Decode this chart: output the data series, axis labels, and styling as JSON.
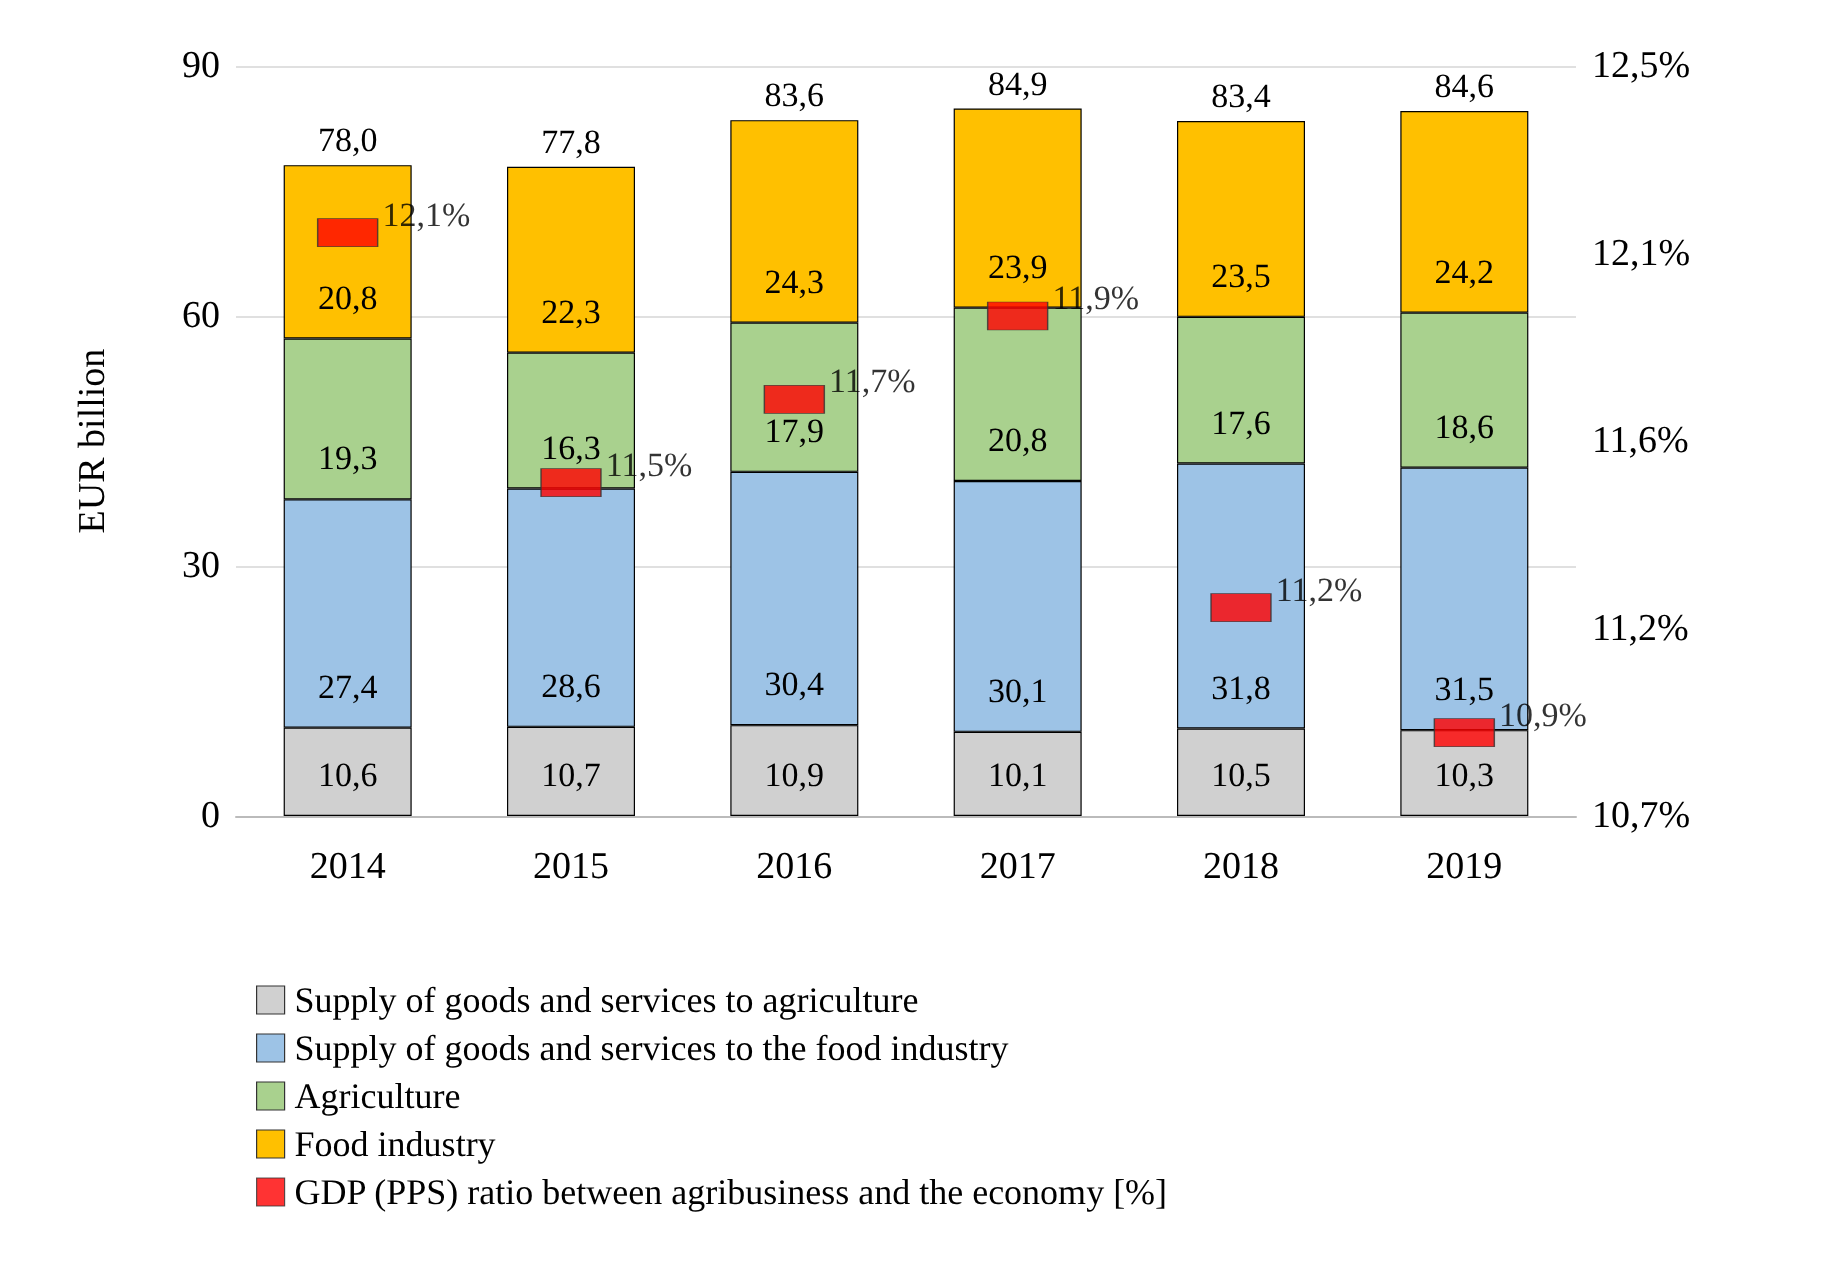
{
  "chart_data": {
    "type": "bar",
    "stacked": true,
    "ylabel": "EUR billion",
    "categories": [
      "2014",
      "2015",
      "2016",
      "2017",
      "2018",
      "2019"
    ],
    "ylim": [
      0,
      90
    ],
    "yticks": [
      0,
      30,
      60,
      90
    ],
    "y2lim": [
      10.7,
      12.5
    ],
    "y2ticks": [
      {
        "value": 10.7,
        "label": "10,7%"
      },
      {
        "value": 11.15,
        "label": "11,2%"
      },
      {
        "value": 11.6,
        "label": "11,6%"
      },
      {
        "value": 12.05,
        "label": "12,1%"
      },
      {
        "value": 12.5,
        "label": "12,5%"
      }
    ],
    "grid": "y",
    "legend": "bottom",
    "marker": "square",
    "totals": [
      "78,0",
      "77,8",
      "83,6",
      "84,9",
      "83,4",
      "84,6"
    ],
    "series": [
      {
        "name": "Supply of goods and services to agriculture",
        "color": "#d0d0d0",
        "values": [
          10.6,
          10.7,
          10.9,
          10.1,
          10.5,
          10.3
        ],
        "value_labels": [
          "10,6",
          "10,7",
          "10,9",
          "10,1",
          "10,5",
          "10,3"
        ]
      },
      {
        "name": "Supply of goods and services to the food industry",
        "color": "#9dc3e6",
        "values": [
          27.4,
          28.6,
          30.4,
          30.1,
          31.8,
          31.5
        ],
        "value_labels": [
          "27,4",
          "28,6",
          "30,4",
          "30,1",
          "31,8",
          "31,5"
        ]
      },
      {
        "name": "Agriculture",
        "color": "#a9d18e",
        "values": [
          19.3,
          16.3,
          17.9,
          20.8,
          17.6,
          18.6
        ],
        "value_labels": [
          "19,3",
          "16,3",
          "17,9",
          "20,8",
          "17,6",
          "18,6"
        ]
      },
      {
        "name": "Food industry",
        "color": "#ffc000",
        "values": [
          20.8,
          22.3,
          24.3,
          23.9,
          23.5,
          24.2
        ],
        "value_labels": [
          "20,8",
          "22,3",
          "24,3",
          "23,9",
          "23,5",
          "24,2"
        ]
      },
      {
        "name": "GDP (PPS) ratio between agribusiness and the economy [%]",
        "type": "scatter",
        "axis": "y2",
        "color": "#ff0000",
        "values": [
          12.1,
          11.5,
          11.7,
          11.9,
          11.2,
          10.9
        ],
        "value_labels": [
          "12,1%",
          "11,5%",
          "11,7%",
          "11,9%",
          "11,2%",
          "10,9%"
        ]
      }
    ]
  }
}
